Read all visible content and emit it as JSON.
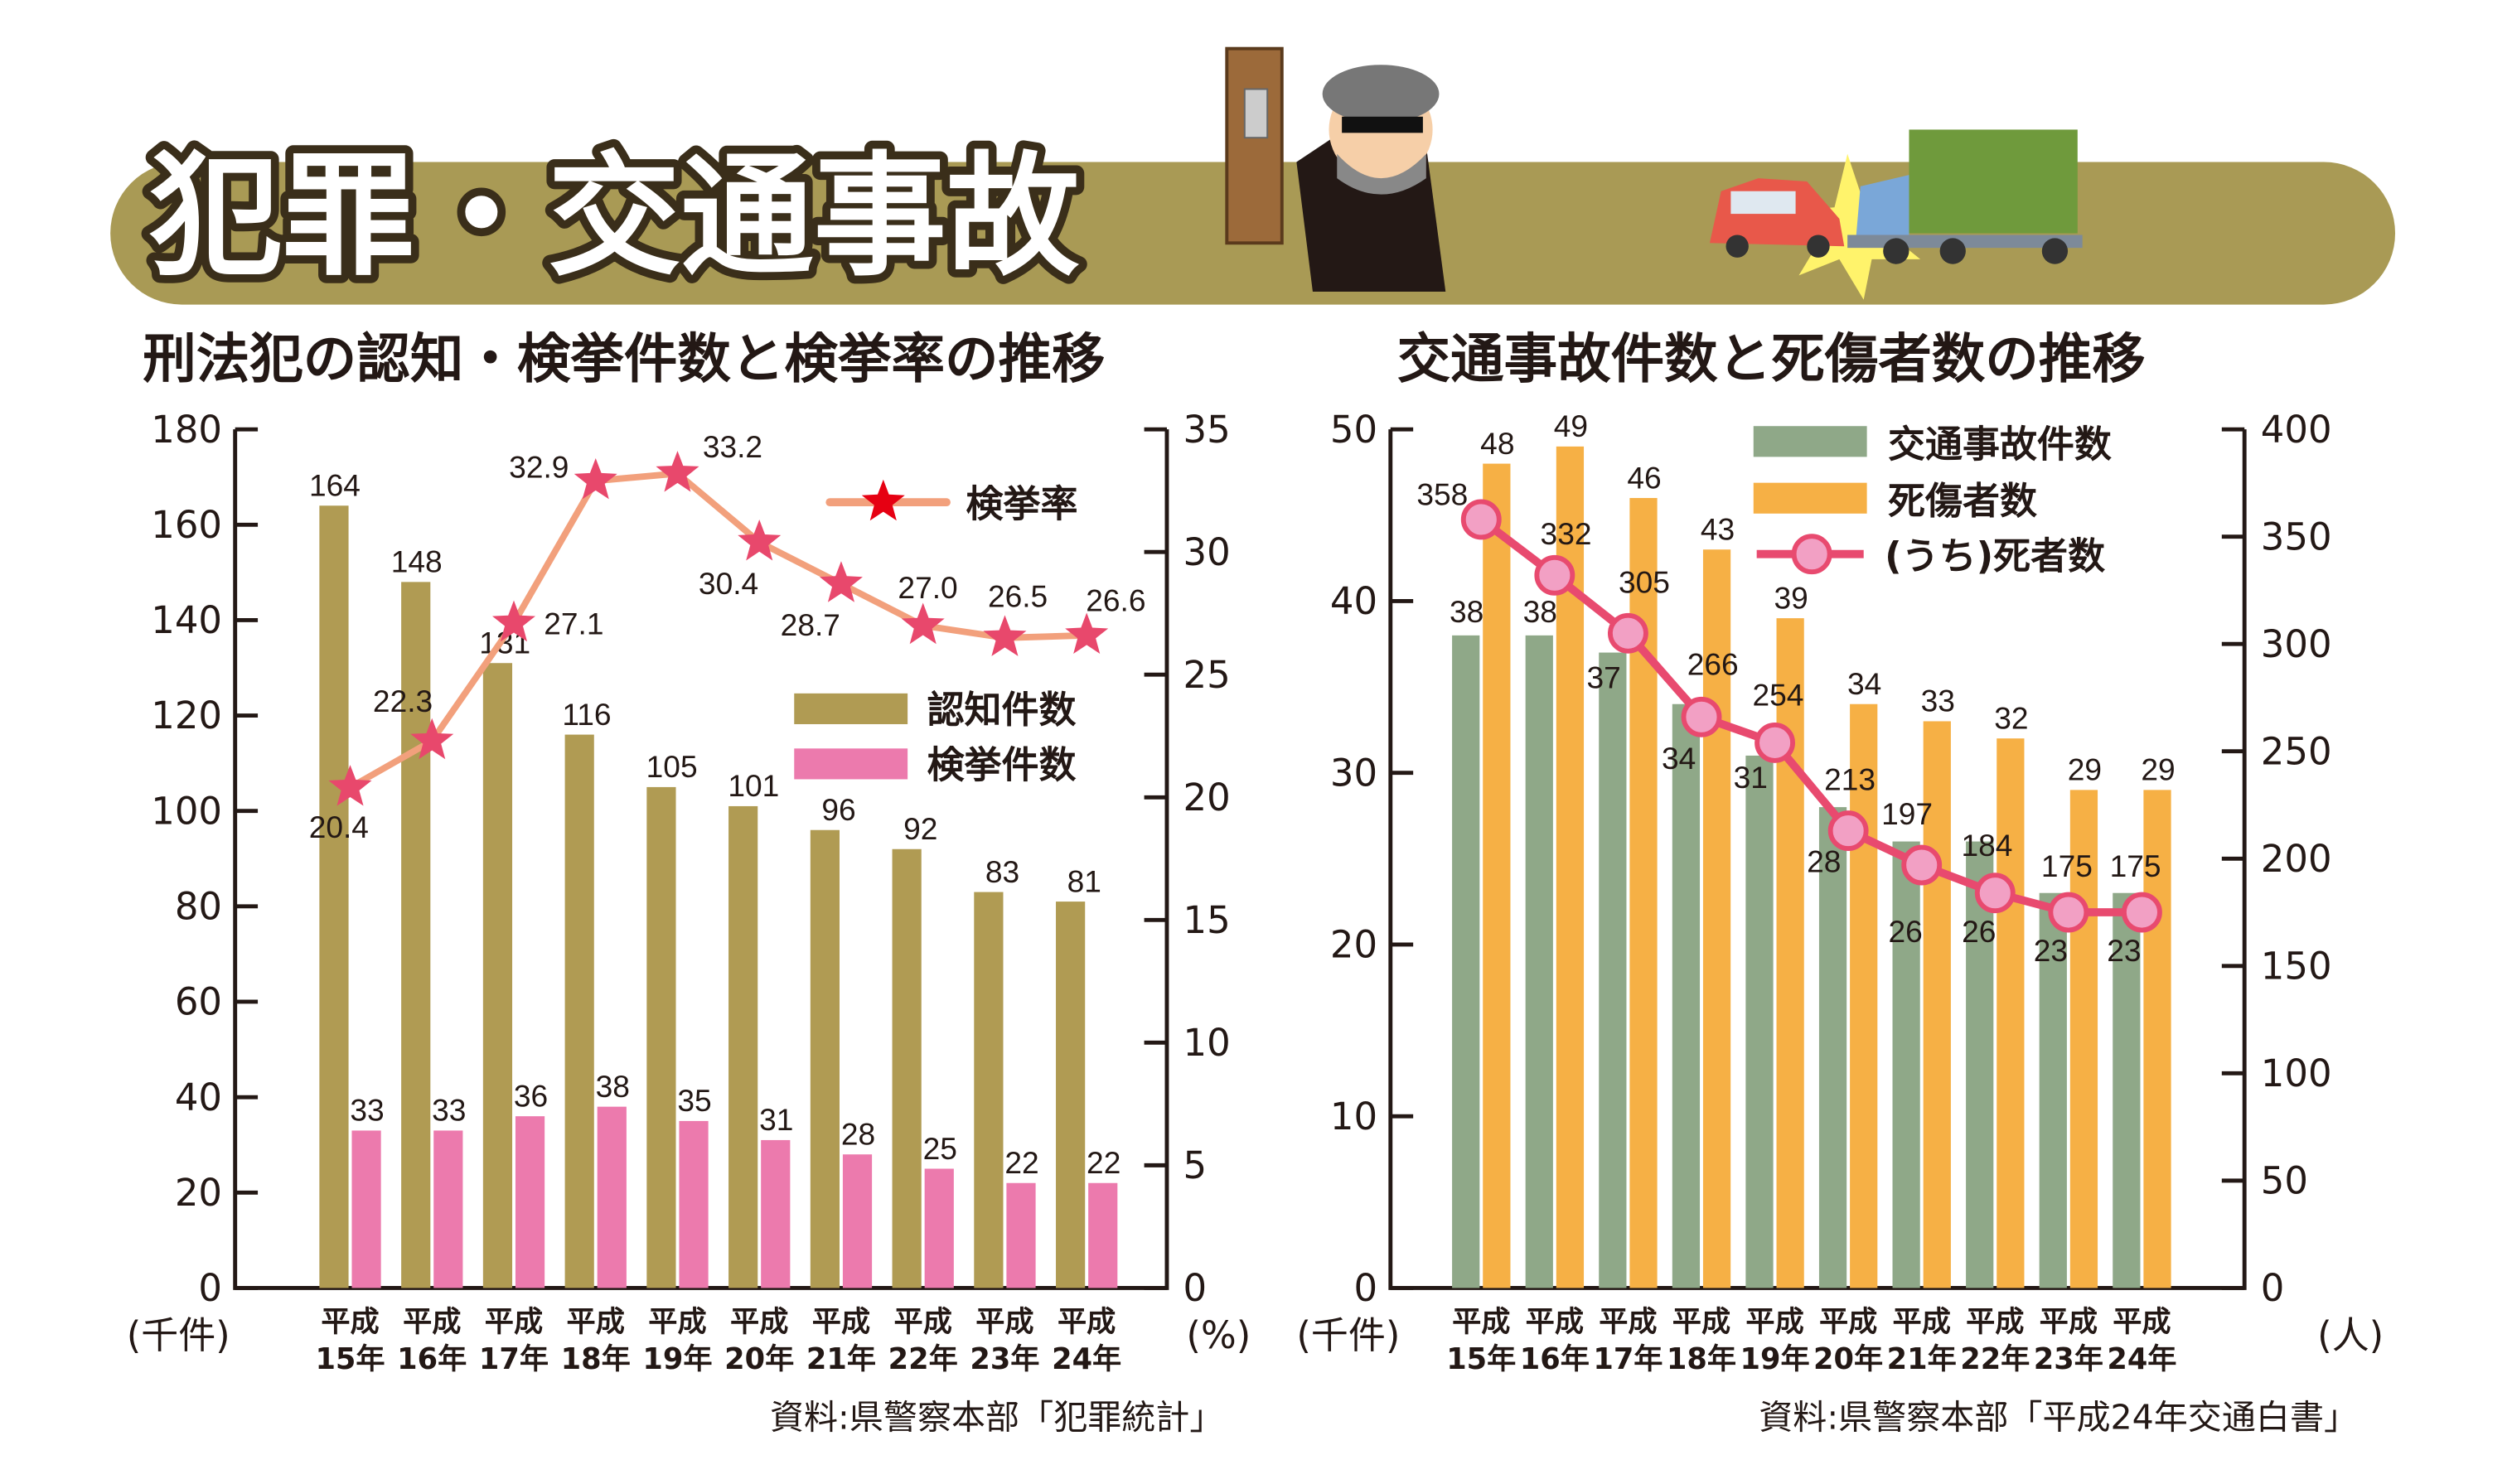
{
  "title": "犯罪・交通事故",
  "colors": {
    "banner": "#a99a55",
    "recognized": "#b09b53",
    "cleared": "#ec7aad",
    "rate_line": "#f2a07c",
    "rate_star": "#e8486c",
    "accidents": "#8fa888",
    "casualties": "#f6b045",
    "deaths_line": "#e84a6f",
    "deaths_marker": "#f2a0c4"
  },
  "chart_data": [
    {
      "type": "bar",
      "title": "刑法犯の認知・検挙件数と検挙率の推移",
      "categories": [
        [
          "平成",
          "15年"
        ],
        [
          "平成",
          "16年"
        ],
        [
          "平成",
          "17年"
        ],
        [
          "平成",
          "18年"
        ],
        [
          "平成",
          "19年"
        ],
        [
          "平成",
          "20年"
        ],
        [
          "平成",
          "21年"
        ],
        [
          "平成",
          "22年"
        ],
        [
          "平成",
          "23年"
        ],
        [
          "平成",
          "24年"
        ]
      ],
      "ylabel": "(千件)",
      "y2label": "(%)",
      "ylim": [
        0,
        180
      ],
      "yticks": [
        "0",
        "20",
        "40",
        "60",
        "80",
        "100",
        "120",
        "140",
        "160",
        "180"
      ],
      "y2lim": [
        0,
        35
      ],
      "y2ticks": [
        "0",
        "5",
        "10",
        "15",
        "20",
        "25",
        "30",
        "35"
      ],
      "series": [
        {
          "name": "認知件数",
          "type": "bar",
          "values": [
            164,
            148,
            131,
            116,
            105,
            101,
            96,
            92,
            83,
            81
          ]
        },
        {
          "name": "検挙件数",
          "type": "bar",
          "values": [
            33,
            33,
            36,
            38,
            35,
            31,
            28,
            25,
            22,
            22
          ]
        },
        {
          "name": "検挙率",
          "type": "line",
          "axis": "right",
          "values": [
            20.4,
            22.3,
            27.1,
            32.9,
            33.2,
            30.4,
            28.7,
            27.0,
            26.5,
            26.6
          ],
          "labels": [
            "20.4",
            "22.3",
            "27.1",
            "32.9",
            "33.2",
            "30.4",
            "28.7",
            "27.0",
            "26.5",
            "26.6"
          ]
        }
      ],
      "source": "資料:県警察本部「犯罪統計」"
    },
    {
      "type": "bar",
      "title": "交通事故件数と死傷者数の推移",
      "categories": [
        [
          "平成",
          "15年"
        ],
        [
          "平成",
          "16年"
        ],
        [
          "平成",
          "17年"
        ],
        [
          "平成",
          "18年"
        ],
        [
          "平成",
          "19年"
        ],
        [
          "平成",
          "20年"
        ],
        [
          "平成",
          "21年"
        ],
        [
          "平成",
          "22年"
        ],
        [
          "平成",
          "23年"
        ],
        [
          "平成",
          "24年"
        ]
      ],
      "ylabel": "(千件)",
      "y2label": "(人)",
      "ylim": [
        0,
        50
      ],
      "yticks": [
        "0",
        "10",
        "20",
        "30",
        "40",
        "50"
      ],
      "y2lim": [
        0,
        400
      ],
      "y2ticks": [
        "0",
        "50",
        "100",
        "150",
        "200",
        "250",
        "300",
        "350",
        "400"
      ],
      "series": [
        {
          "name": "交通事故件数",
          "type": "bar",
          "values": [
            38,
            38,
            37,
            34,
            31,
            28,
            26,
            26,
            23,
            23
          ]
        },
        {
          "name": "死傷者数",
          "type": "bar",
          "values": [
            48,
            49,
            46,
            43,
            39,
            34,
            33,
            32,
            29,
            29
          ]
        },
        {
          "name": "(うち)死者数",
          "type": "line",
          "axis": "right",
          "values": [
            358,
            332,
            305,
            266,
            254,
            213,
            197,
            184,
            175,
            175
          ]
        }
      ],
      "source": "資料:県警察本部「平成24年交通白書」"
    }
  ]
}
